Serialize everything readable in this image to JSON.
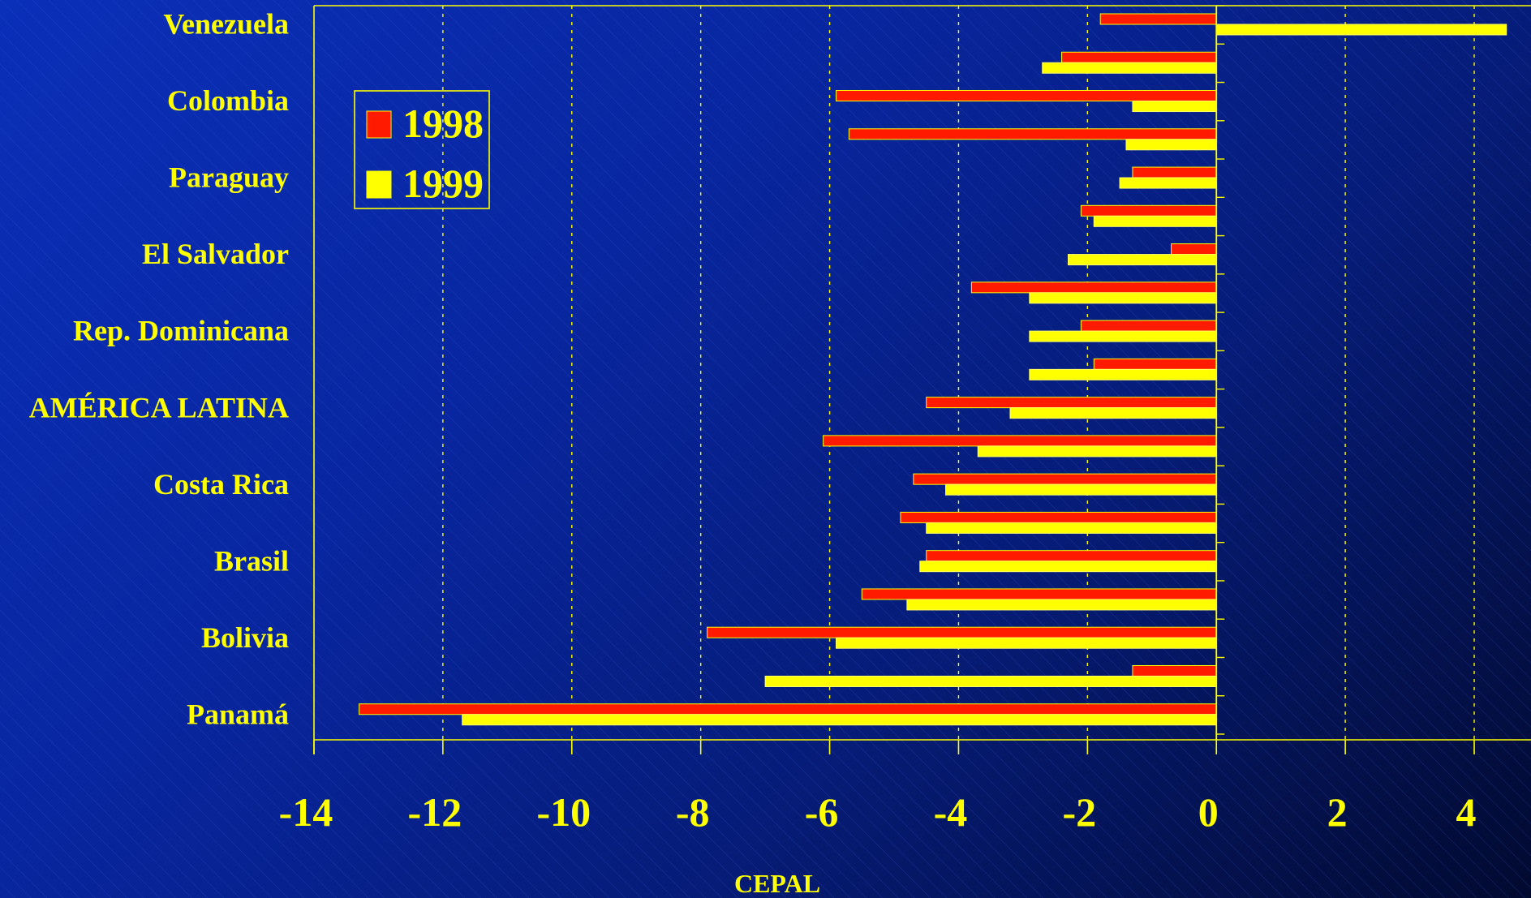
{
  "chart_data": {
    "type": "bar",
    "orientation": "horizontal",
    "title": "",
    "xlabel": "",
    "ylabel": "",
    "source": "CEPAL",
    "xlim": [
      -14,
      4.7
    ],
    "xticks": [
      -14,
      -12,
      -10,
      -8,
      -6,
      -4,
      -2,
      0,
      2,
      4
    ],
    "grid": "vertical dashed",
    "legend_position": "top-left",
    "categories": [
      "Venezuela",
      "",
      "Colombia",
      "",
      "Paraguay",
      "",
      "El Salvador",
      "",
      "Rep. Dominicana",
      "",
      "AMÉRICA LATINA",
      "",
      "Costa Rica",
      "",
      "Brasil",
      "",
      "Bolivia",
      "",
      "Panamá"
    ],
    "series": [
      {
        "name": "1998",
        "color": "#ff1a00",
        "values": [
          -1.8,
          -2.4,
          -5.9,
          -5.7,
          -1.3,
          -2.1,
          -0.7,
          -3.8,
          -2.1,
          -1.9,
          -4.5,
          -6.1,
          -4.7,
          -4.9,
          -4.5,
          -5.5,
          -7.9,
          -1.3,
          -13.3
        ]
      },
      {
        "name": "1999",
        "color": "#ffff00",
        "values": [
          4.5,
          -2.7,
          -1.3,
          -1.4,
          -1.5,
          -1.9,
          -2.3,
          -2.9,
          -2.9,
          -2.9,
          -3.2,
          -3.7,
          -4.2,
          -4.5,
          -4.6,
          -4.8,
          -5.9,
          -7.0,
          -11.7
        ]
      }
    ]
  }
}
